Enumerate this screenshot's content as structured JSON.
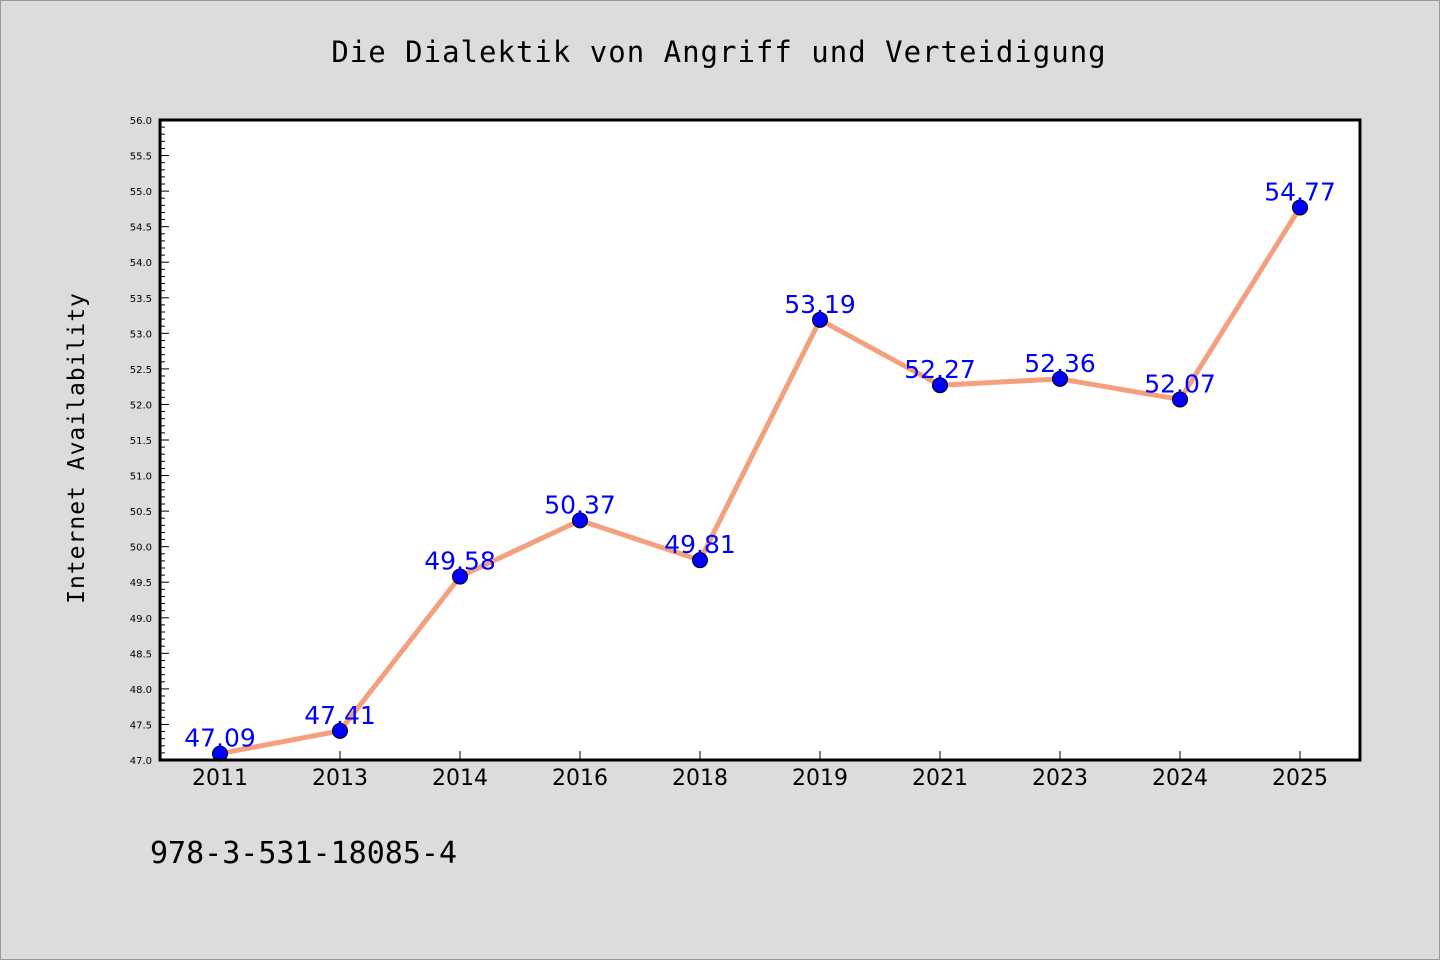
{
  "chart_data": {
    "type": "line",
    "title": "Die Dialektik von Angriff und Verteidigung",
    "xlabel": "",
    "ylabel": "Internet Availability",
    "categories": [
      "2011",
      "2013",
      "2014",
      "2016",
      "2018",
      "2019",
      "2021",
      "2023",
      "2024",
      "2025"
    ],
    "values": [
      47.09,
      47.41,
      49.58,
      50.37,
      49.81,
      53.19,
      52.27,
      52.36,
      52.07,
      54.77
    ],
    "data_labels": [
      "47.09",
      "47.41",
      "49.58",
      "50.37",
      "49.81",
      "53.19",
      "52.27",
      "52.36",
      "52.07",
      "54.77"
    ],
    "ylim": [
      47.0,
      56.0
    ],
    "yticks": [
      "47.0",
      "47.5",
      "48.0",
      "48.5",
      "49.0",
      "49.5",
      "50.0",
      "50.5",
      "51.0",
      "51.5",
      "52.0",
      "52.5",
      "53.0",
      "53.5",
      "54.0",
      "54.5",
      "55.0",
      "55.5",
      "56.0"
    ],
    "grid": false,
    "line_color": "#f4a07e",
    "marker_color": "#0000ff",
    "label_color": "#0000ff"
  },
  "footer_text": "978-3-531-18085-4"
}
